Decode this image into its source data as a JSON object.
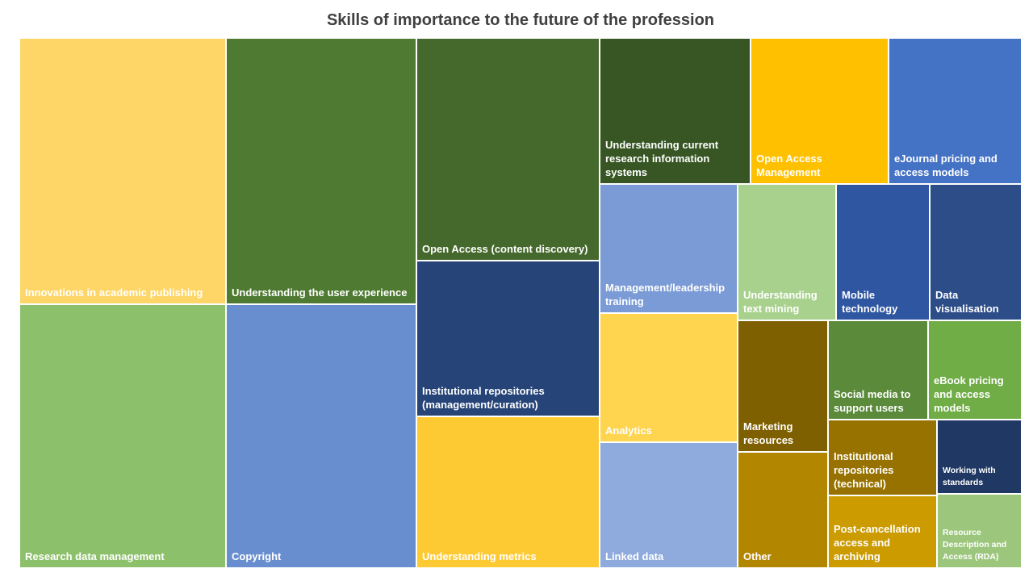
{
  "chart_data": {
    "type": "treemap",
    "title": "Skills of importance to the future of the profession",
    "value_note": "relative size (approximate, estimated from tile areas)",
    "items": [
      {
        "label": "Innovations in academic publishing",
        "value": 83.9,
        "color": "#FED668"
      },
      {
        "label": "Research data management",
        "value": 83.1,
        "color": "#8DC06A"
      },
      {
        "label": "Understanding the user experience",
        "value": 77.3,
        "color": "#4F7A32"
      },
      {
        "label": "Copyright",
        "value": 76.6,
        "color": "#698ECF"
      },
      {
        "label": "Open Access (content discovery)",
        "value": 62.2,
        "color": "#45692D"
      },
      {
        "label": "Institutional repositories (management/curation)",
        "value": 43.4,
        "color": "#264478"
      },
      {
        "label": "Understanding metrics",
        "value": 42.3,
        "color": "#FECA33"
      },
      {
        "label": "Understanding current research information systems",
        "value": 33.5,
        "color": "#375623"
      },
      {
        "label": "Open Access Management",
        "value": 30.6,
        "color": "#FFC000"
      },
      {
        "label": "eJournal pricing and access models",
        "value": 29.5,
        "color": "#4472C4"
      },
      {
        "label": "Management/leadership training",
        "value": 27.0,
        "color": "#7A9BD5"
      },
      {
        "label": "Understanding text mining",
        "value": 20.3,
        "color": "#A9D18E"
      },
      {
        "label": "Mobile technology",
        "value": 19.3,
        "color": "#2F56A1"
      },
      {
        "label": "Data visualisation",
        "value": 19.0,
        "color": "#2D4D89"
      },
      {
        "label": "Analytics",
        "value": 27.0,
        "color": "#FFD44F"
      },
      {
        "label": "Linked data",
        "value": 26.4,
        "color": "#8FAADC"
      },
      {
        "label": "Marketing resources",
        "value": 18.0,
        "color": "#7F6000"
      },
      {
        "label": "Other",
        "value": 15.9,
        "color": "#B38600"
      },
      {
        "label": "Social media to support users",
        "value": 15.0,
        "color": "#5A8A3A"
      },
      {
        "label": "eBook pricing and access models",
        "value": 14.0,
        "color": "#70AD47"
      },
      {
        "label": "Institutional repositories (technical)",
        "value": 12.5,
        "color": "#977200"
      },
      {
        "label": "Working with standards",
        "value": 9.5,
        "color": "#203864"
      },
      {
        "label": "Post-cancellation access and archiving",
        "value": 11.9,
        "color": "#CB9B00"
      },
      {
        "label": "Resource Description and Access (RDA)",
        "value": 9.5,
        "color": "#9DC67D"
      }
    ]
  }
}
